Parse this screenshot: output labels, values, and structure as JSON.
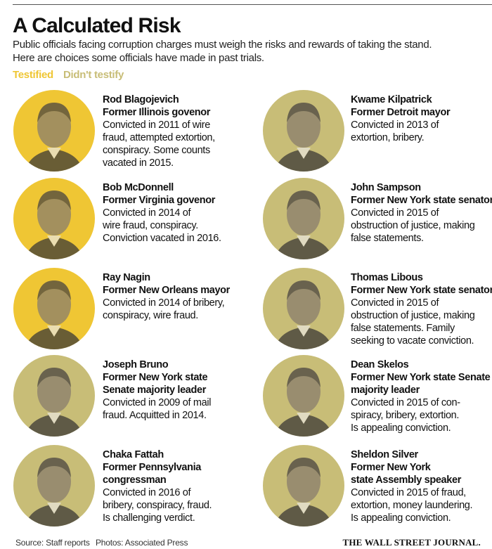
{
  "header": {
    "title": "A Calculated Risk",
    "subtitle": [
      "Public officials facing corruption charges must weigh the risks and rewards of taking the stand.",
      "Here are choices some officials have made in past trials."
    ]
  },
  "legend": [
    {
      "label": "Testified",
      "color": "#efc634"
    },
    {
      "label": "Didn't testify",
      "color": "#c8bd77"
    }
  ],
  "people": [
    {
      "name": "Rod Blagojevich",
      "role": [
        "Former Illinois govenor"
      ],
      "details": [
        "Convicted in 2011 of wire",
        "fraud, attempted extortion,",
        "conspiracy. Some counts",
        "vacated in 2015."
      ],
      "color": "#efc634"
    },
    {
      "name": "Kwame Kilpatrick",
      "role": [
        "Former Detroit mayor"
      ],
      "details": [
        "Convicted in 2013 of",
        "extortion, bribery."
      ],
      "color": "#c8bd77"
    },
    {
      "name": "Bob McDonnell",
      "role": [
        "Former Virginia govenor"
      ],
      "details": [
        "Convicted in 2014 of",
        "wire fraud, conspiracy.",
        "Conviction vacated in 2016."
      ],
      "color": "#efc634"
    },
    {
      "name": "John Sampson",
      "role": [
        "Former New York state senator"
      ],
      "details": [
        "Convicted in 2015 of",
        "obstruction of justice, making",
        "false statements."
      ],
      "color": "#c8bd77"
    },
    {
      "name": "Ray Nagin",
      "role": [
        "Former New Orleans mayor"
      ],
      "details": [
        "Convicted in 2014 of bribery,",
        "conspiracy, wire fraud."
      ],
      "color": "#efc634"
    },
    {
      "name": "Thomas Libous",
      "role": [
        "Former New York state senator"
      ],
      "details": [
        "Convicted in 2015 of",
        "obstruction of justice, making",
        "false statements. Family",
        "seeking to vacate conviction."
      ],
      "color": "#c8bd77"
    },
    {
      "name": "Joseph Bruno",
      "role": [
        "Former New York state",
        "Senate majority leader"
      ],
      "details": [
        "Convicted in 2009 of mail",
        "fraud. Acquitted in 2014."
      ],
      "color": "#c8bd77"
    },
    {
      "name": "Dean Skelos",
      "role": [
        "Former New York state Senate",
        "majority leader"
      ],
      "details": [
        "Convicted in 2015 of con-",
        "spiracy, bribery, extortion.",
        "Is appealing conviction."
      ],
      "color": "#c8bd77"
    },
    {
      "name": "Chaka Fattah",
      "role": [
        "Former Pennsylvania",
        "congressman"
      ],
      "details": [
        "Convicted in 2016 of",
        "bribery, conspiracy, fraud.",
        "Is challenging verdict."
      ],
      "color": "#c8bd77"
    },
    {
      "name": "Sheldon Silver",
      "role": [
        "Former New York",
        "state Assembly speaker"
      ],
      "details": [
        "Convicted in 2015 of fraud,",
        "extortion, money laundering.",
        "Is appealing conviction."
      ],
      "color": "#c8bd77"
    }
  ],
  "footer": {
    "source": "Source: Staff reports",
    "photos": "Photos: Associated Press",
    "publisher": "THE WALL STREET JOURNAL."
  }
}
